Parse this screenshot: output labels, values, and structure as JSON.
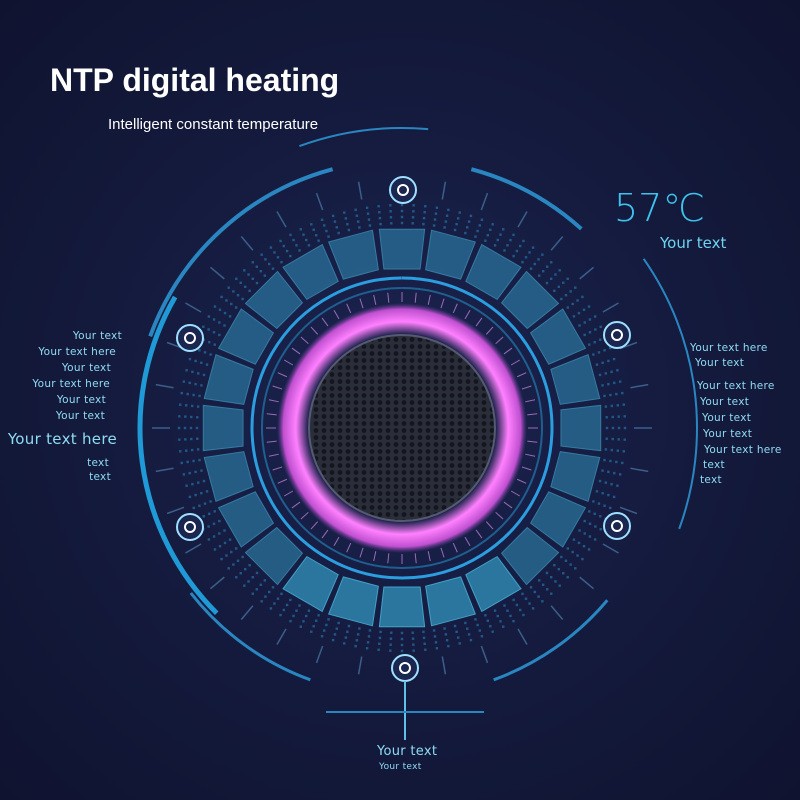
{
  "header": {
    "title": "NTP digital heating",
    "subtitle": "Intelligent constant temperature"
  },
  "temperature": {
    "value": "57℃",
    "label": "Your text"
  },
  "left_labels": [
    "Your text",
    "Your text here",
    "Your text",
    "Your text here",
    "Your text",
    "Your text",
    "Your text here",
    "text",
    "text"
  ],
  "right_labels": [
    "Your text here",
    "Your text",
    "Your text here",
    "Your text",
    "Your text",
    "Your text",
    "Your text here",
    "text",
    "text"
  ],
  "bottom_labels": [
    "Your text",
    "Your text"
  ],
  "colors": {
    "background": "#141a3c",
    "accent": "#3fc3ee",
    "heating_ring": "#e060e8",
    "tiles": "#2a7fa8"
  },
  "icons": [
    "target-icon",
    "mesh-grille",
    "heating-ring"
  ]
}
